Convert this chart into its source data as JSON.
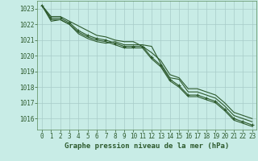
{
  "title": "Graphe pression niveau de la mer (hPa)",
  "background_color": "#c8ece6",
  "grid_color": "#a8ccc8",
  "line_color": "#2d5a2d",
  "spine_color": "#5a8a5a",
  "xlim": [
    -0.5,
    23.5
  ],
  "ylim": [
    1015.3,
    1023.5
  ],
  "yticks": [
    1016,
    1017,
    1018,
    1019,
    1020,
    1021,
    1022,
    1023
  ],
  "xticks": [
    0,
    1,
    2,
    3,
    4,
    5,
    6,
    7,
    8,
    9,
    10,
    11,
    12,
    13,
    14,
    15,
    16,
    17,
    18,
    19,
    20,
    21,
    22,
    23
  ],
  "series": [
    [
      1023.2,
      1022.2,
      1022.3,
      1022.0,
      1021.4,
      1021.1,
      1020.9,
      1020.8,
      1020.9,
      1020.7,
      1020.7,
      1020.7,
      1020.6,
      1019.5,
      1018.6,
      1018.5,
      1017.7,
      1017.7,
      1017.5,
      1017.3,
      1016.8,
      1016.2,
      1016.0,
      1015.8
    ],
    [
      1023.2,
      1022.3,
      1022.3,
      1022.0,
      1021.5,
      1021.2,
      1021.0,
      1020.9,
      1020.7,
      1020.5,
      1020.5,
      1020.5,
      1019.8,
      1019.3,
      1018.4,
      1018.0,
      1017.4,
      1017.4,
      1017.2,
      1017.0,
      1016.5,
      1015.9,
      1015.7,
      1015.5
    ],
    [
      1023.2,
      1022.4,
      1022.4,
      1022.1,
      1021.6,
      1021.3,
      1021.1,
      1021.0,
      1020.8,
      1020.6,
      1020.6,
      1020.6,
      1019.9,
      1019.4,
      1018.5,
      1018.1,
      1017.5,
      1017.5,
      1017.3,
      1017.1,
      1016.6,
      1016.0,
      1015.8,
      1015.6
    ],
    [
      1023.2,
      1022.5,
      1022.5,
      1022.2,
      1021.9,
      1021.6,
      1021.3,
      1021.2,
      1021.0,
      1020.9,
      1020.9,
      1020.6,
      1020.2,
      1019.7,
      1018.8,
      1018.6,
      1017.9,
      1017.9,
      1017.7,
      1017.5,
      1017.0,
      1016.4,
      1016.2,
      1016.0
    ]
  ],
  "marked_series_idx": 2,
  "tick_fontsize": 5.5,
  "label_fontsize": 6.5
}
